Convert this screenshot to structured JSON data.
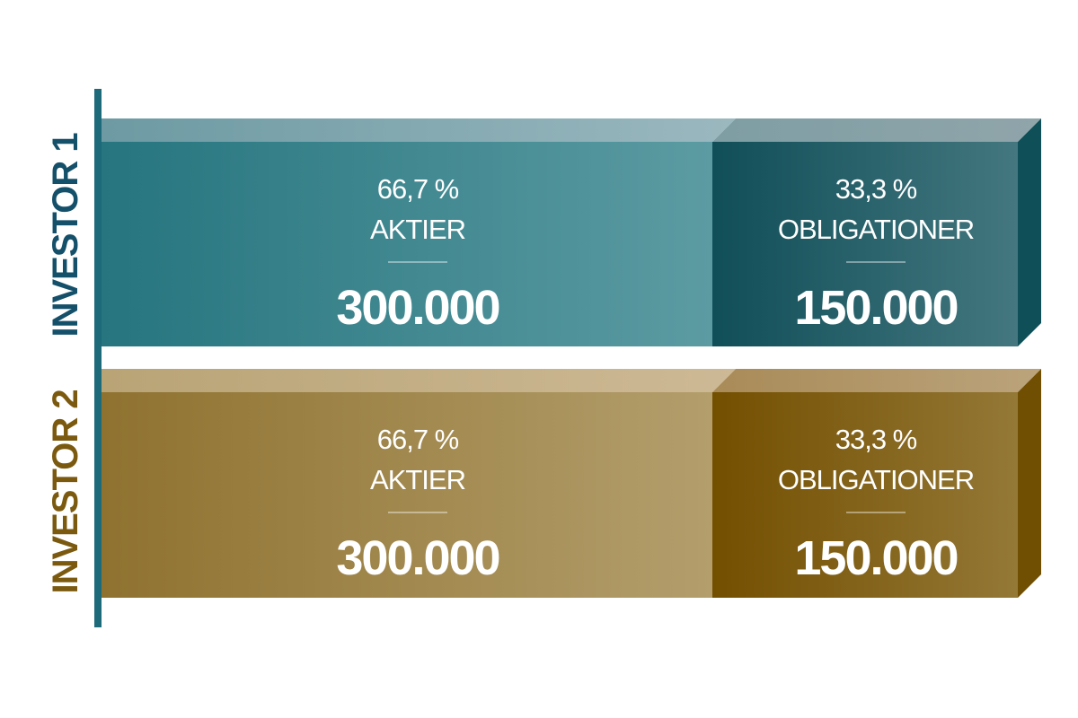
{
  "chart_data": {
    "type": "bar",
    "orientation": "horizontal",
    "stacked": true,
    "categories": [
      "INVESTOR 1",
      "INVESTOR 2"
    ],
    "series": [
      {
        "name": "AKTIER",
        "values": [
          300000,
          300000
        ],
        "value_labels": [
          "300.000",
          "300.000"
        ],
        "percent_labels": [
          "66,7 %",
          "66,7 %"
        ]
      },
      {
        "name": "OBLIGATIONER",
        "values": [
          150000,
          150000
        ],
        "value_labels": [
          "150.000",
          "150.000"
        ],
        "percent_labels": [
          "33,3 %",
          "33,3 %"
        ]
      }
    ],
    "xlim": [
      0,
      450000
    ],
    "grid": false,
    "legend": "none"
  },
  "colors": {
    "investor_1": {
      "label": "#15506a",
      "light": "#26757f",
      "dark": "#124f5a"
    },
    "investor_2": {
      "label": "#7b5a10",
      "light": "#8f7230",
      "dark": "#734f00"
    },
    "axis": "#1d6a7a"
  }
}
